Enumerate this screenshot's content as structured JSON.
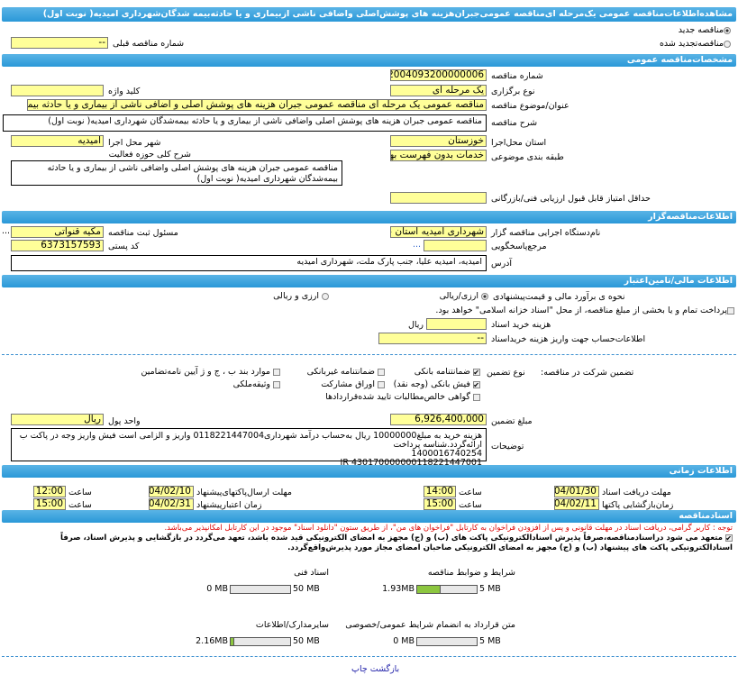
{
  "title": "مشاهده‌اطلاعات‌مناقصه عمومی یک‌مرحله ای‌مناقصه عمومی‌جبران‌هزینه های پوشش‌اصلی واضافی ناشی از‌بیماری و یا حادثه‌بیمه شدگان‌شهرداری امیدیه( نوبت اول)",
  "status": {
    "new_label": "مناقصه جدید",
    "new_checked": true,
    "renewed_label": "مناقصه‌تجدید شده",
    "renewed_checked": false,
    "prev_number_label": "شماره مناقصه قبلی",
    "prev_number": "--"
  },
  "general": {
    "header": "مشخصات‌مناقصه عمومی",
    "number_label": "شماره مناقصه",
    "number": "2004093200000006",
    "type_label": "نوع برگزاری",
    "type": "یک مرحله ای",
    "keyword_label": "کلید واژه",
    "keyword": "",
    "subject_label": "عنوان/موضوع مناقصه",
    "subject": "مناقصه عمومی یک مرحله ای مناقصه عمومی جبران هزینه های پوشش اصلی و اضافی ناشی از بیماری و یا حادثه بیمه شدگان ش",
    "desc_label": "شرح مناقصه",
    "desc": "مناقصه عمومی جبران هزینه های پوشش اصلی واضافی ناشی از بیماری و یا حادثه بیمه‌شدگان شهرداری امیدیه( نوبت اول)",
    "province_label": "استان محل‌اجرا",
    "province": "خوزستان",
    "city_label": "شهر محل اجرا",
    "city": "امیدیه",
    "category_label": "طبقه بندی موضوعی",
    "category": "خدمات بدون فهرست بها",
    "activity_label": "شرح کلی حوزه فعالیت",
    "activity": "مناقصه عمومی جبران هزینه های پوشش اصلی واضافی ناشی از بیماری و یا حادثه بیمه‌شدگان شهرداری امیدیه( نوبت اول)",
    "min_score_label": "حداقل امتیاز قابل قبول ارزیابی فنی/بازرگانی",
    "min_score": ""
  },
  "organizer": {
    "header": "اطلاعات‌مناقصه‌گزار",
    "org_label": "نام‌دستگاه اجرایی مناقصه گزار",
    "org": "شهرداری امیدیه استان خوز",
    "responsible_label": "مسئول ثبت مناقصه",
    "responsible": "مکیه قنواتی",
    "reference_label": "مرجع‌پاسخگویی",
    "reference": "",
    "postal_label": "کد پستی",
    "postal": "6373157593",
    "address_label": "آدرس",
    "address": "امیدیه، امیدیه علیا، جنب پارک ملت، شهرداری امیدیه",
    "more": "..."
  },
  "finance": {
    "header": "اطلاعات مالی/تامین‌اعتبار",
    "estimate_label": "نحوه ی برآورد مالی و قیمت‌پیشنهادی",
    "opt1": "ارزی/ریالی",
    "opt1_checked": true,
    "opt2": "ارزی و ریالی",
    "treasury_label": "پرداخت تمام و یا بخشی از مبلغ مناقصه، از محل \"اسناد خزانه اسلامی\" خواهد بود.",
    "treasury_checked": false,
    "doc_cost_label": "هزینه خرید اسناد",
    "doc_cost": "",
    "doc_cost_unit": "ریال",
    "account_label": "اطلاعات‌حساب جهت واریز هزینه خریداسناد",
    "account": "--",
    "guarantee_label": "تضمین شرکت در مناقصه:",
    "guarantee_type_label": "نوع تضمین",
    "guarantees": [
      {
        "label": "ضمانتنامه بانکی",
        "checked": true
      },
      {
        "label": "ضمانتنامه غیربانکی",
        "checked": false
      },
      {
        "label": "موارد بند ب ، ج و ژ آیین نامه‌تضامین",
        "checked": false
      },
      {
        "label": "فیش بانکی (وجه نقد)",
        "checked": true
      },
      {
        "label": "اوراق مشارکت",
        "checked": false
      },
      {
        "label": "وثیقه‌ملکی",
        "checked": false
      },
      {
        "label": "گواهی خالص‌مطالبات تایید شده‌قراردادها",
        "checked": false
      }
    ],
    "amount_label": "مبلغ تضمین",
    "amount": "6,926,400,000",
    "currency_label": "واحد پول",
    "currency": "ریال",
    "notes_label": "توضیحات",
    "notes": [
      "هزینه خرید به مبلغ10000000 ریال به‌حساب درآمد شهرداری0118221447004 واریز و الزامی است فیش واریز وجه در پاکت ب ارائه‌گردد.شناسه پرداخت",
      "1400016740254",
      "IR 430170000000118221447001"
    ]
  },
  "timing": {
    "header": "اطلاعات زمانی",
    "time_label": "ساعت",
    "rows": [
      {
        "label": "مهلت دریافت اسناد",
        "date": "1404/01/30",
        "time": "14:00"
      },
      {
        "label": "مهلت ارسال‌پاکتهای‌پیشنهاد",
        "date": "1404/02/10",
        "time": "12:00"
      },
      {
        "label": "زمان‌بازگشایی پاکتها",
        "date": "1404/02/11",
        "time": "15:00"
      },
      {
        "label": "زمان اعتبارپیشنهاد",
        "date": "1404/02/31",
        "time": "15:00"
      }
    ]
  },
  "docs": {
    "header": "اسنادمناقصه",
    "notice": "توجه : کاربر گرامی، دریافت اسناد در مهلت قانونی و پس از افزودن فراخوان به کارتابل \"فراخوان های من\"، از طریق ستون \"دانلود اسناد\" موجود در این کارتابل امکانپذیر می‌باشد.",
    "commit_checked": true,
    "commit": "متعهد می شود دراسنادمناقصه،صرفاً پذیرش اسنادالکترونیکی پاکت های (ب) و (ج) مجهز به امضای الکترونیکی قید شده باشد، تعهد می‌گردد در بازگشایی و پذیرش اسناد، صرفاً اسنادالکترونیکی پاکت های پیشنهاد (ب) و (ج) مجهز به امضای الکترونیکی صاحبان امضای مجاز مورد پذیرش‌واقع‌گردد.",
    "files": [
      {
        "label": "شرایط و ضوابط مناقصه",
        "used": "1.93MB",
        "max": "5 MB",
        "fraction": 0.386
      },
      {
        "label": "اسناد فنی",
        "used": "0 MB",
        "max": "50 MB",
        "fraction": 0
      },
      {
        "label": "متن قرارداد به انضمام شرایط عمومی/خصوصی",
        "used": "0 MB",
        "max": "5 MB",
        "fraction": 0
      },
      {
        "label": "سایرمدارک/اطلاعات",
        "used": "2.16MB",
        "max": "50 MB",
        "fraction": 0.043
      }
    ]
  },
  "footer": {
    "print": "چاپ",
    "back": "بازگشت"
  }
}
